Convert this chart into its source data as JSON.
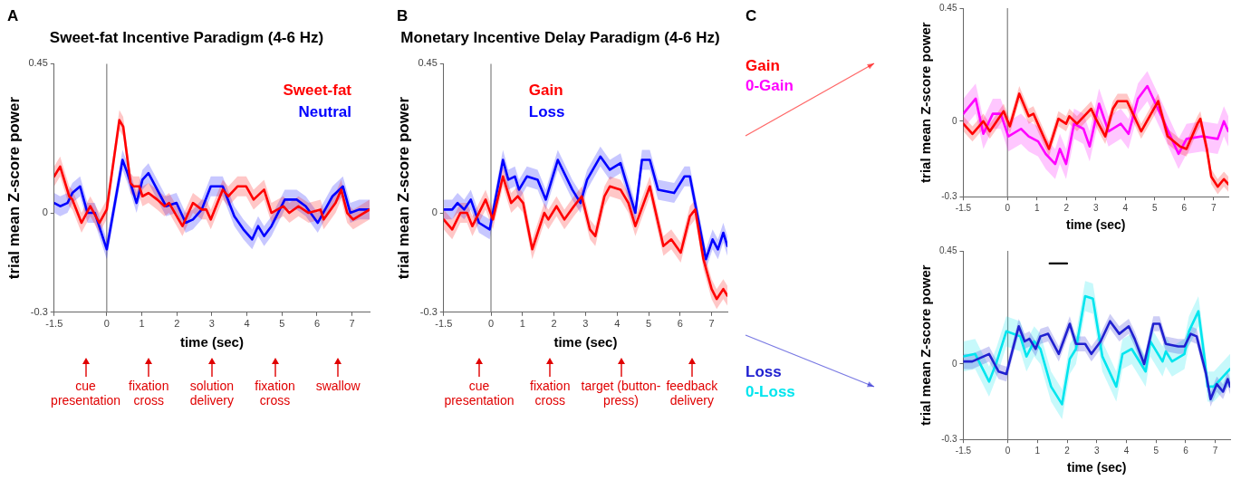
{
  "chart_data": [
    {
      "type": "line",
      "title": "Sweet-fat Incentive Paradigm (4-6 Hz)",
      "xlabel": "time (sec)",
      "ylabel": "trial mean Z-score power",
      "xlim": [
        -1.5,
        7.5
      ],
      "xticks": [
        -1.5,
        0,
        1,
        2,
        3,
        4,
        5,
        6,
        7
      ],
      "ylim": [
        -0.3,
        0.45
      ],
      "yticks": [
        -0.3,
        0,
        0.45
      ],
      "legend": "top right",
      "marker": "none",
      "ref_lines": [
        {
          "axis": "x",
          "value": 0,
          "color": "#808080"
        }
      ],
      "annotations": [
        "A",
        "cue presentation",
        "fixation cross",
        "solution delivery",
        "fixation cross",
        "swallow"
      ],
      "series": [
        {
          "name": "Sweet-fat",
          "color": "#ff0000",
          "x": [
            -1.5,
            -1.33,
            -1.07,
            -0.98,
            -0.72,
            -0.47,
            -0.21,
            0,
            0.36,
            0.47,
            0.68,
            0.76,
            0.93,
            1.02,
            1.19,
            1.44,
            1.65,
            1.78,
            2.16,
            2.46,
            2.71,
            2.84,
            2.97,
            3.31,
            3.47,
            3.73,
            3.98,
            4.19,
            4.49,
            4.7,
            5.04,
            5.21,
            5.47,
            5.76,
            6.1,
            6.19,
            6.53,
            6.69,
            6.86,
            7.03,
            7.5
          ],
          "values": [
            0.11,
            0.14,
            0.05,
            0.04,
            -0.03,
            0.02,
            -0.03,
            0.01,
            0.28,
            0.26,
            0.09,
            0.08,
            0.08,
            0.05,
            0.06,
            0.04,
            0.02,
            0.03,
            -0.04,
            0.03,
            0.01,
            0.01,
            -0.02,
            0.07,
            0.05,
            0.08,
            0.08,
            0.04,
            0.07,
            0.0,
            0.02,
            0.0,
            0.02,
            0.0,
            0.01,
            -0.02,
            0.03,
            0.07,
            0.0,
            -0.02,
            0.01
          ],
          "lower": [
            0.08,
            0.11,
            0.02,
            0.01,
            -0.06,
            -0.01,
            -0.06,
            -0.02,
            0.25,
            0.23,
            0.06,
            0.05,
            0.05,
            0.02,
            0.03,
            0.01,
            -0.01,
            0.0,
            -0.07,
            0.0,
            -0.02,
            -0.02,
            -0.05,
            0.04,
            0.02,
            0.05,
            0.05,
            0.01,
            0.04,
            -0.03,
            -0.01,
            -0.03,
            -0.01,
            -0.03,
            -0.02,
            -0.05,
            0.0,
            0.04,
            -0.03,
            -0.05,
            -0.02
          ],
          "upper": [
            0.14,
            0.17,
            0.08,
            0.07,
            0.0,
            0.05,
            0.0,
            0.04,
            0.31,
            0.29,
            0.12,
            0.11,
            0.11,
            0.08,
            0.09,
            0.07,
            0.05,
            0.06,
            -0.01,
            0.06,
            0.04,
            0.04,
            0.01,
            0.1,
            0.08,
            0.11,
            0.11,
            0.07,
            0.1,
            0.03,
            0.05,
            0.03,
            0.05,
            0.03,
            0.04,
            0.01,
            0.06,
            0.1,
            0.03,
            0.01,
            0.04
          ]
        },
        {
          "name": "Neutral",
          "color": "#0000ff",
          "x": [
            -1.5,
            -1.33,
            -1.12,
            -0.98,
            -0.76,
            -0.55,
            -0.34,
            0,
            0.45,
            0.59,
            0.85,
            1.02,
            1.19,
            1.44,
            1.69,
            1.99,
            2.25,
            2.46,
            2.71,
            2.97,
            3.31,
            3.64,
            3.9,
            4.15,
            4.32,
            4.49,
            4.7,
            5.08,
            5.42,
            5.68,
            6.02,
            6.23,
            6.44,
            6.74,
            6.95,
            7.2,
            7.5
          ],
          "values": [
            0.03,
            0.02,
            0.03,
            0.06,
            0.08,
            0.0,
            0.0,
            -0.11,
            0.16,
            0.12,
            0.03,
            0.1,
            0.12,
            0.07,
            0.02,
            0.03,
            -0.03,
            -0.02,
            0.01,
            0.08,
            0.08,
            -0.01,
            -0.05,
            -0.08,
            -0.04,
            -0.07,
            -0.04,
            0.04,
            0.04,
            0.02,
            -0.03,
            0.01,
            0.05,
            0.08,
            0.0,
            0.01,
            0.01
          ],
          "lower": [
            0.0,
            -0.01,
            0.0,
            0.03,
            0.05,
            -0.03,
            -0.03,
            -0.14,
            0.13,
            0.09,
            0.0,
            0.07,
            0.09,
            0.04,
            -0.01,
            0.0,
            -0.06,
            -0.05,
            -0.02,
            0.05,
            0.05,
            -0.04,
            -0.08,
            -0.11,
            -0.07,
            -0.1,
            -0.07,
            0.01,
            0.01,
            -0.01,
            -0.06,
            -0.02,
            0.02,
            0.05,
            -0.03,
            -0.02,
            -0.02
          ],
          "upper": [
            0.06,
            0.05,
            0.06,
            0.09,
            0.11,
            0.03,
            0.03,
            -0.08,
            0.19,
            0.15,
            0.06,
            0.13,
            0.15,
            0.1,
            0.05,
            0.06,
            0.0,
            0.01,
            0.04,
            0.11,
            0.11,
            0.02,
            -0.02,
            -0.05,
            -0.01,
            -0.04,
            -0.01,
            0.07,
            0.07,
            0.05,
            0.0,
            0.04,
            0.08,
            0.11,
            0.03,
            0.04,
            0.04
          ]
        }
      ]
    },
    {
      "type": "line",
      "title": "Monetary Incentive Delay Paradigm (4-6 Hz)",
      "xlabel": "time (sec)",
      "ylabel": "trial mean Z-score power",
      "xlim": [
        -1.5,
        7.5
      ],
      "xticks": [
        -1.5,
        0,
        1,
        2,
        3,
        4,
        5,
        6,
        7
      ],
      "ylim": [
        -0.3,
        0.45
      ],
      "yticks": [
        -0.3,
        0,
        0.45
      ],
      "legend": "top",
      "marker": "none",
      "ref_lines": [
        {
          "axis": "x",
          "value": 0,
          "color": "#808080"
        }
      ],
      "annotations": [
        "B",
        "cue presentation",
        "fixation cross",
        "target (button-press)",
        "feedback delivery"
      ],
      "series": [
        {
          "name": "Gain",
          "color": "#ff0000",
          "x": [
            -1.5,
            -1.23,
            -0.97,
            -0.76,
            -0.59,
            -0.17,
            0.06,
            0.38,
            0.64,
            0.85,
            1.02,
            1.31,
            1.69,
            1.82,
            2.08,
            2.33,
            2.63,
            2.88,
            3.14,
            3.31,
            3.6,
            3.77,
            4.11,
            4.36,
            4.58,
            5.04,
            5.47,
            5.72,
            6.02,
            6.31,
            6.48,
            6.74,
            7.0,
            7.16,
            7.37,
            7.5
          ],
          "values": [
            -0.02,
            -0.05,
            0.0,
            0.0,
            -0.04,
            0.04,
            -0.02,
            0.11,
            0.03,
            0.05,
            0.03,
            -0.11,
            0.0,
            -0.02,
            0.02,
            -0.02,
            0.02,
            0.05,
            -0.05,
            -0.07,
            0.05,
            0.08,
            0.07,
            0.03,
            -0.04,
            0.08,
            -0.1,
            -0.08,
            -0.12,
            -0.01,
            0.01,
            -0.14,
            -0.23,
            -0.26,
            -0.23,
            -0.25
          ],
          "lower": [
            -0.05,
            -0.08,
            -0.03,
            -0.03,
            -0.07,
            0.01,
            -0.05,
            0.08,
            0.0,
            0.02,
            0.0,
            -0.14,
            -0.03,
            -0.05,
            -0.01,
            -0.05,
            -0.01,
            0.02,
            -0.08,
            -0.1,
            0.02,
            0.05,
            0.04,
            0.0,
            -0.07,
            0.05,
            -0.13,
            -0.11,
            -0.15,
            -0.04,
            -0.02,
            -0.17,
            -0.26,
            -0.29,
            -0.26,
            -0.28
          ],
          "upper": [
            0.01,
            -0.02,
            0.03,
            0.03,
            -0.01,
            0.07,
            0.01,
            0.14,
            0.06,
            0.08,
            0.06,
            -0.08,
            0.03,
            0.01,
            0.05,
            0.01,
            0.05,
            0.08,
            -0.02,
            -0.04,
            0.08,
            0.11,
            0.1,
            0.06,
            -0.01,
            0.11,
            -0.07,
            -0.05,
            -0.09,
            0.02,
            0.04,
            -0.11,
            -0.2,
            -0.23,
            -0.2,
            -0.22
          ]
        },
        {
          "name": "Loss",
          "color": "#0000ff",
          "x": [
            -1.5,
            -1.23,
            -1.06,
            -0.85,
            -0.64,
            -0.38,
            -0.04,
            0.38,
            0.55,
            0.76,
            0.89,
            1.14,
            1.48,
            1.74,
            2.12,
            2.58,
            2.84,
            3.05,
            3.47,
            3.77,
            4.11,
            4.58,
            4.79,
            5.04,
            5.3,
            5.81,
            6.14,
            6.31,
            6.82,
            7.03,
            7.2,
            7.37,
            7.5
          ],
          "values": [
            0.01,
            0.01,
            0.03,
            0.01,
            0.04,
            -0.03,
            -0.05,
            0.16,
            0.1,
            0.11,
            0.07,
            0.11,
            0.1,
            0.04,
            0.16,
            0.07,
            0.03,
            0.1,
            0.17,
            0.13,
            0.15,
            0.0,
            0.16,
            0.16,
            0.07,
            0.06,
            0.11,
            0.11,
            -0.14,
            -0.08,
            -0.11,
            -0.06,
            -0.1
          ],
          "lower": [
            -0.02,
            -0.02,
            0.0,
            -0.02,
            0.01,
            -0.06,
            -0.08,
            0.13,
            0.07,
            0.08,
            0.04,
            0.08,
            0.07,
            0.01,
            0.13,
            0.04,
            0.0,
            0.07,
            0.14,
            0.1,
            0.12,
            -0.03,
            0.13,
            0.13,
            0.04,
            0.03,
            0.08,
            0.08,
            -0.17,
            -0.11,
            -0.14,
            -0.09,
            -0.13
          ],
          "upper": [
            0.04,
            0.04,
            0.06,
            0.04,
            0.07,
            0.0,
            -0.02,
            0.19,
            0.13,
            0.14,
            0.1,
            0.14,
            0.13,
            0.07,
            0.19,
            0.1,
            0.06,
            0.13,
            0.2,
            0.16,
            0.18,
            0.03,
            0.19,
            0.19,
            0.1,
            0.09,
            0.14,
            0.14,
            -0.11,
            -0.05,
            -0.08,
            -0.03,
            -0.07
          ]
        }
      ]
    },
    {
      "type": "line",
      "xlabel": "time (sec)",
      "ylabel": "trial mean Z-score power",
      "xlim": [
        -1.5,
        7.5
      ],
      "xticks": [
        -1.5,
        0,
        1,
        2,
        3,
        4,
        5,
        6,
        7
      ],
      "ylim": [
        -0.3,
        0.45
      ],
      "yticks": [
        -0.3,
        0,
        0.45
      ],
      "legend": "top left",
      "marker": "none",
      "ref_lines": [
        {
          "axis": "x",
          "value": 0,
          "color": "#808080"
        }
      ],
      "annotations": [
        "C"
      ],
      "series": [
        {
          "name": "Gain",
          "color": "#ff0000",
          "x": [
            -1.5,
            -1.19,
            -0.82,
            -0.6,
            -0.13,
            0.08,
            0.4,
            0.72,
            0.88,
            1.41,
            1.73,
            1.99,
            2.1,
            2.36,
            2.84,
            3.0,
            3.32,
            3.58,
            3.74,
            4.06,
            4.54,
            5.12,
            5.44,
            5.86,
            6.08,
            6.45,
            6.55,
            6.77,
            6.92,
            7.14,
            7.35,
            7.5
          ],
          "values": [
            -0.01,
            -0.05,
            0.0,
            -0.04,
            0.04,
            -0.02,
            0.11,
            0.02,
            0.03,
            -0.11,
            0.01,
            -0.01,
            0.02,
            -0.01,
            0.05,
            0.01,
            -0.06,
            0.05,
            0.08,
            0.08,
            -0.04,
            0.08,
            -0.06,
            -0.1,
            -0.11,
            -0.01,
            0.01,
            -0.11,
            -0.22,
            -0.26,
            -0.23,
            -0.25
          ],
          "lower": [
            -0.04,
            -0.08,
            -0.03,
            -0.07,
            0.01,
            -0.05,
            0.08,
            -0.01,
            0.0,
            -0.14,
            -0.02,
            -0.04,
            -0.01,
            -0.04,
            0.02,
            -0.02,
            -0.09,
            0.02,
            0.05,
            0.05,
            -0.07,
            0.05,
            -0.09,
            -0.13,
            -0.14,
            -0.04,
            -0.02,
            -0.14,
            -0.25,
            -0.29,
            -0.26,
            -0.28
          ],
          "upper": [
            0.02,
            -0.02,
            0.03,
            -0.01,
            0.07,
            0.01,
            0.14,
            0.05,
            0.06,
            -0.08,
            0.04,
            0.02,
            0.05,
            0.02,
            0.08,
            0.04,
            -0.03,
            0.08,
            0.11,
            0.11,
            -0.01,
            0.11,
            -0.03,
            -0.07,
            -0.08,
            0.02,
            0.04,
            -0.08,
            -0.19,
            -0.23,
            -0.2,
            -0.22
          ]
        },
        {
          "name": "0-Gain",
          "color": "#ff00ff",
          "x": [
            -1.5,
            -1.08,
            -0.82,
            -0.5,
            -0.23,
            0.03,
            0.46,
            0.72,
            1.04,
            1.3,
            1.62,
            1.78,
            1.99,
            2.26,
            2.58,
            2.79,
            3.11,
            3.43,
            3.85,
            4.11,
            4.43,
            4.75,
            5.23,
            5.81,
            6.08,
            6.61,
            7.14,
            7.35,
            7.5
          ],
          "values": [
            0.03,
            0.09,
            -0.05,
            0.03,
            0.03,
            -0.06,
            -0.03,
            -0.06,
            -0.08,
            -0.13,
            -0.17,
            -0.11,
            -0.17,
            -0.01,
            -0.03,
            -0.1,
            0.07,
            -0.04,
            -0.01,
            -0.05,
            0.09,
            0.14,
            0.02,
            -0.13,
            -0.07,
            -0.06,
            -0.07,
            0.0,
            -0.04
          ],
          "lower": [
            -0.03,
            0.03,
            -0.11,
            -0.03,
            -0.03,
            -0.12,
            -0.09,
            -0.12,
            -0.14,
            -0.19,
            -0.23,
            -0.17,
            -0.23,
            -0.07,
            -0.09,
            -0.16,
            0.01,
            -0.1,
            -0.07,
            -0.11,
            0.03,
            0.08,
            -0.04,
            -0.19,
            -0.13,
            -0.12,
            -0.13,
            -0.06,
            -0.1
          ],
          "upper": [
            0.09,
            0.15,
            0.01,
            0.09,
            0.09,
            0.0,
            0.03,
            0.0,
            -0.02,
            -0.07,
            -0.11,
            -0.05,
            -0.11,
            0.05,
            0.03,
            -0.04,
            0.13,
            0.02,
            0.05,
            0.01,
            0.15,
            0.2,
            0.08,
            -0.07,
            -0.01,
            0.0,
            -0.01,
            0.06,
            0.02
          ]
        }
      ]
    },
    {
      "type": "line",
      "xlabel": "time (sec)",
      "ylabel": "trial mean Z-score power",
      "xlim": [
        -1.5,
        7.5
      ],
      "xticks": [
        -1.5,
        0,
        1,
        2,
        3,
        4,
        5,
        6,
        7
      ],
      "ylim": [
        -0.3,
        0.45
      ],
      "yticks": [
        -0.3,
        0,
        0.45
      ],
      "legend": "bottom left",
      "marker": "none",
      "ref_lines": [
        {
          "axis": "x",
          "value": 0,
          "color": "#808080"
        }
      ],
      "series": [
        {
          "name": "Loss",
          "color": "#2020d0",
          "x": [
            -1.5,
            -1.2,
            -0.63,
            -0.31,
            -0.05,
            0.37,
            0.57,
            0.73,
            0.94,
            1.1,
            1.36,
            1.72,
            2.09,
            2.3,
            2.61,
            2.82,
            3.13,
            3.45,
            3.76,
            4.08,
            4.28,
            4.6,
            4.91,
            5.12,
            5.33,
            5.75,
            5.96,
            6.17,
            6.37,
            6.69,
            6.84,
            7.05,
            7.26,
            7.42,
            7.5
          ],
          "values": [
            0.01,
            0.01,
            0.04,
            -0.03,
            -0.04,
            0.15,
            0.09,
            0.1,
            0.06,
            0.11,
            0.12,
            0.04,
            0.16,
            0.08,
            0.08,
            0.04,
            0.09,
            0.17,
            0.12,
            0.15,
            0.1,
            0.0,
            0.16,
            0.16,
            0.08,
            0.07,
            0.07,
            0.12,
            0.11,
            -0.04,
            -0.14,
            -0.08,
            -0.11,
            -0.06,
            -0.09
          ],
          "lower": [
            -0.02,
            -0.02,
            0.01,
            -0.06,
            -0.07,
            0.12,
            0.06,
            0.07,
            0.03,
            0.08,
            0.09,
            0.01,
            0.13,
            0.05,
            0.05,
            0.01,
            0.06,
            0.14,
            0.09,
            0.12,
            0.07,
            -0.03,
            0.13,
            0.13,
            0.05,
            0.04,
            0.04,
            0.09,
            0.08,
            -0.07,
            -0.17,
            -0.11,
            -0.14,
            -0.09,
            -0.12
          ],
          "upper": [
            0.04,
            0.04,
            0.07,
            0.0,
            -0.01,
            0.18,
            0.12,
            0.13,
            0.09,
            0.14,
            0.15,
            0.07,
            0.19,
            0.11,
            0.11,
            0.07,
            0.12,
            0.2,
            0.15,
            0.18,
            0.13,
            0.03,
            0.19,
            0.19,
            0.11,
            0.1,
            0.1,
            0.15,
            0.14,
            -0.01,
            -0.11,
            -0.05,
            -0.08,
            -0.03,
            -0.06
          ]
        },
        {
          "name": "0-Loss",
          "color": "#00e5ee",
          "x": [
            -1.5,
            -1.1,
            -0.63,
            -0.37,
            -0.05,
            0.42,
            0.63,
            0.89,
            1.1,
            1.46,
            1.83,
            2.09,
            2.3,
            2.61,
            2.87,
            3.19,
            3.66,
            3.87,
            4.18,
            4.65,
            4.81,
            5.22,
            5.33,
            5.54,
            5.96,
            6.11,
            6.43,
            6.64,
            6.74,
            6.95,
            7.26,
            7.5
          ],
          "values": [
            0.03,
            0.04,
            -0.07,
            0.01,
            0.13,
            0.11,
            0.03,
            0.09,
            0.06,
            -0.09,
            -0.16,
            0.02,
            0.06,
            0.27,
            0.26,
            0.03,
            -0.09,
            0.04,
            0.06,
            -0.03,
            0.09,
            0.01,
            0.05,
            0.01,
            0.04,
            0.13,
            0.21,
            0.02,
            -0.09,
            -0.09,
            -0.05,
            -0.02
          ],
          "lower": [
            -0.03,
            -0.02,
            -0.13,
            -0.05,
            0.07,
            0.05,
            -0.03,
            0.03,
            0.0,
            -0.15,
            -0.22,
            -0.04,
            0.0,
            0.21,
            0.2,
            -0.03,
            -0.15,
            -0.02,
            0.0,
            -0.09,
            0.03,
            -0.05,
            -0.01,
            -0.05,
            -0.02,
            0.07,
            0.15,
            -0.04,
            -0.15,
            -0.15,
            -0.11,
            -0.08
          ],
          "upper": [
            0.09,
            0.1,
            -0.01,
            0.07,
            0.19,
            0.17,
            0.09,
            0.15,
            0.12,
            -0.03,
            -0.1,
            0.08,
            0.12,
            0.33,
            0.32,
            0.09,
            -0.03,
            0.1,
            0.12,
            0.03,
            0.15,
            0.07,
            0.11,
            0.07,
            0.1,
            0.19,
            0.27,
            0.08,
            -0.03,
            -0.03,
            0.01,
            0.04
          ]
        },
        {
          "type": "line",
          "color": "#000000",
          "x": [
            1.41,
            2.0
          ],
          "values": [
            0.4,
            0.4
          ]
        }
      ]
    }
  ]
}
